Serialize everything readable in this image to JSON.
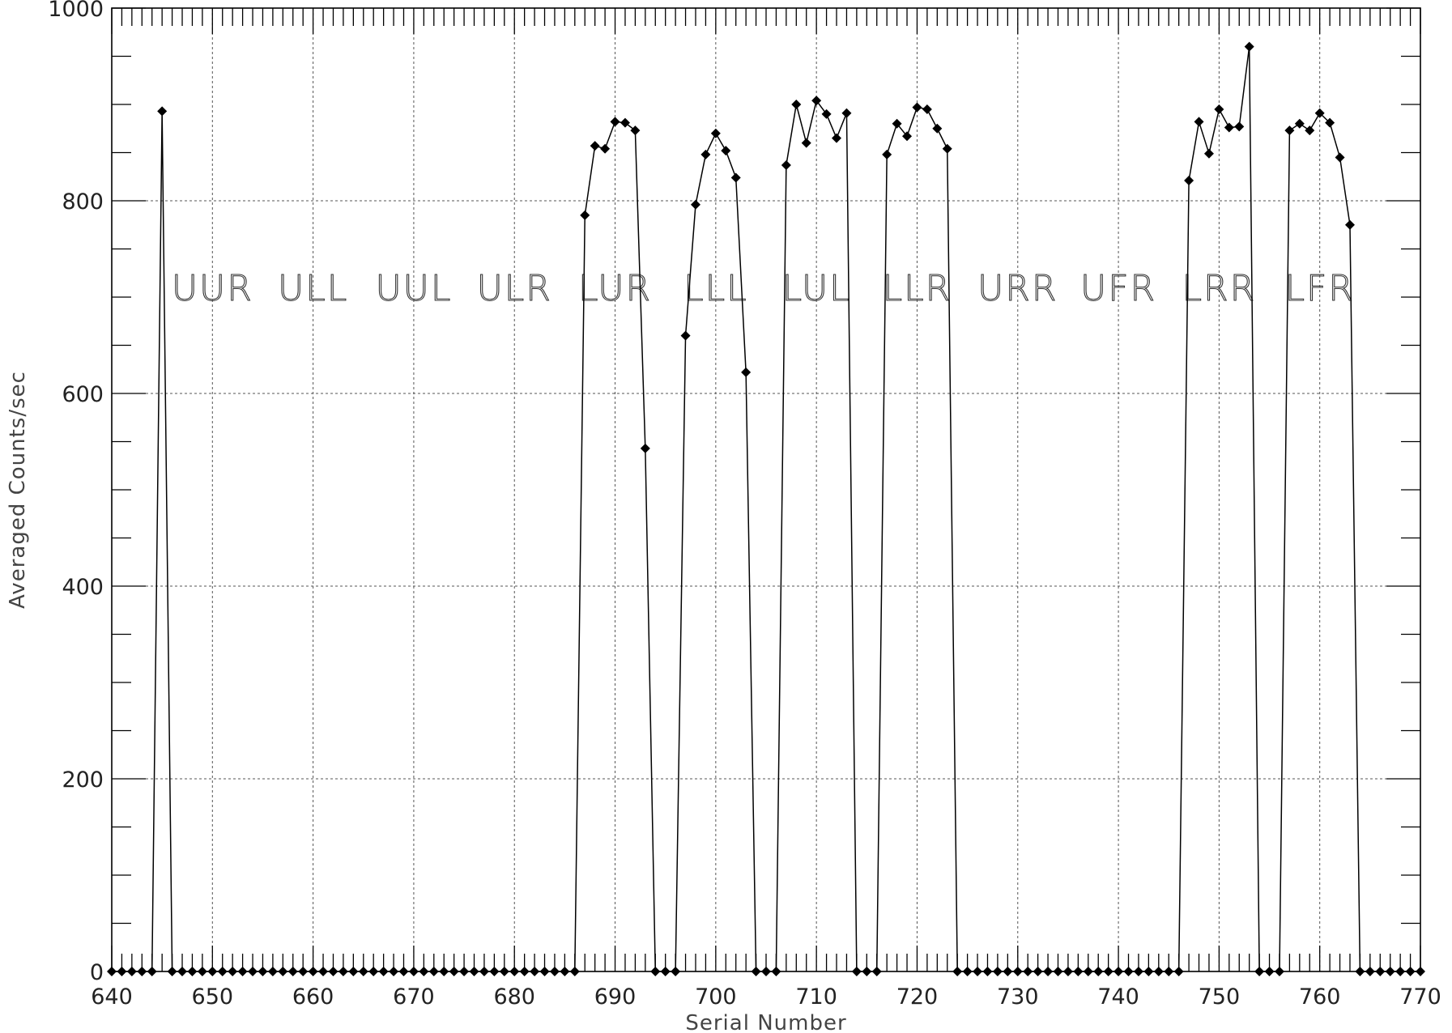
{
  "chart_data": {
    "type": "line",
    "title": "",
    "xlabel": "Serial Number",
    "ylabel": "Averaged Counts/sec",
    "xlim": [
      640,
      770
    ],
    "ylim": [
      0,
      1000
    ],
    "x_ticks": [
      640,
      650,
      660,
      670,
      680,
      690,
      700,
      710,
      720,
      730,
      740,
      750,
      760,
      770
    ],
    "y_ticks": [
      0,
      200,
      400,
      600,
      800,
      1000
    ],
    "grid": true,
    "legend": "none",
    "series_style": {
      "color": "#000000",
      "marker": "diamond"
    },
    "region_labels": [
      {
        "text": "UUR",
        "x": 650
      },
      {
        "text": "ULL",
        "x": 660
      },
      {
        "text": "UUL",
        "x": 670
      },
      {
        "text": "ULR",
        "x": 680
      },
      {
        "text": "LUR",
        "x": 690
      },
      {
        "text": "LLL",
        "x": 700
      },
      {
        "text": "LUL",
        "x": 710
      },
      {
        "text": "LLR",
        "x": 720
      },
      {
        "text": "URR",
        "x": 730
      },
      {
        "text": "UFR",
        "x": 740
      },
      {
        "text": "LRR",
        "x": 750
      },
      {
        "text": "LFR",
        "x": 760
      }
    ],
    "region_label_y": 710,
    "series": [
      {
        "x": [
          640,
          641,
          642,
          643,
          644,
          645,
          646,
          647,
          648,
          649,
          650,
          651,
          652,
          653,
          654,
          655,
          656,
          657,
          658,
          659,
          660,
          661,
          662,
          663,
          664,
          665,
          666,
          667,
          668,
          669,
          670,
          671,
          672,
          673,
          674,
          675,
          676,
          677,
          678,
          679,
          680,
          681,
          682,
          683,
          684,
          685,
          686,
          687,
          688,
          689,
          690,
          691,
          692,
          693,
          694,
          695,
          696,
          697,
          698,
          699,
          700,
          701,
          702,
          703,
          704,
          705,
          706,
          707,
          708,
          709,
          710,
          711,
          712,
          713,
          714,
          715,
          716,
          717,
          718,
          719,
          720,
          721,
          722,
          723,
          724,
          725,
          726,
          727,
          728,
          729,
          730,
          731,
          732,
          733,
          734,
          735,
          736,
          737,
          738,
          739,
          740,
          741,
          742,
          743,
          744,
          745,
          746,
          747,
          748,
          749,
          750,
          751,
          752,
          753,
          754,
          755,
          756,
          757,
          758,
          759,
          760,
          761,
          762,
          763,
          764,
          765,
          766,
          767,
          768,
          769,
          770
        ],
        "y": [
          0,
          0,
          0,
          0,
          0,
          893,
          0,
          0,
          0,
          0,
          0,
          0,
          0,
          0,
          0,
          0,
          0,
          0,
          0,
          0,
          0,
          0,
          0,
          0,
          0,
          0,
          0,
          0,
          0,
          0,
          0,
          0,
          0,
          0,
          0,
          0,
          0,
          0,
          0,
          0,
          0,
          0,
          0,
          0,
          0,
          0,
          0,
          785,
          857,
          854,
          882,
          881,
          873,
          543,
          0,
          0,
          0,
          660,
          796,
          848,
          870,
          852,
          824,
          622,
          0,
          0,
          0,
          837,
          900,
          860,
          904,
          890,
          865,
          891,
          0,
          0,
          0,
          848,
          880,
          867,
          897,
          895,
          875,
          854,
          0,
          0,
          0,
          0,
          0,
          0,
          0,
          0,
          0,
          0,
          0,
          0,
          0,
          0,
          0,
          0,
          0,
          0,
          0,
          0,
          0,
          0,
          0,
          821,
          882,
          849,
          895,
          876,
          877,
          960,
          0,
          0,
          0,
          873,
          880,
          873,
          891,
          881,
          845,
          775,
          0,
          0,
          0,
          0,
          0,
          0,
          0
        ]
      }
    ]
  }
}
